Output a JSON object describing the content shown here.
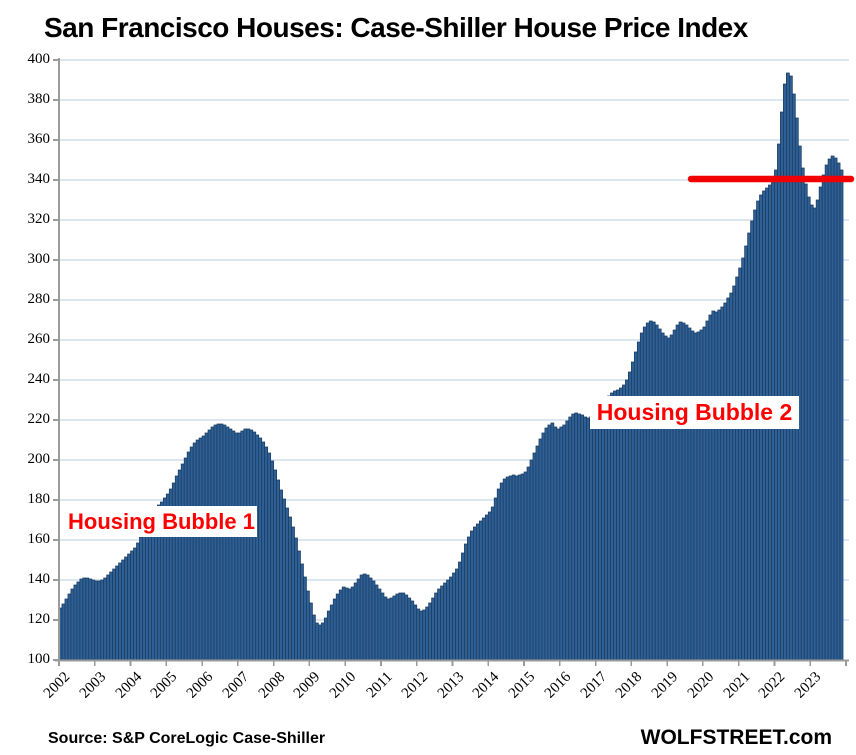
{
  "title": "San Francisco Houses: Case-Shiller House Price Index",
  "source_note": "Source: S&P CoreLogic Case-Shiller",
  "watermark": "WOLFSTREET.com",
  "annotations": {
    "bubble1": "Housing Bubble 1",
    "bubble2": "Housing Bubble 2"
  },
  "colors": {
    "bar_fill": "#2E6096",
    "bar_stroke": "#1B3C61",
    "gridline": "#B9CDE5",
    "axis": "#9B9B9B",
    "reference_line": "#F20000",
    "annotation_text": "#FF0000",
    "background": "#FFFFFF",
    "text": "#000000"
  },
  "chart_data": {
    "type": "bar",
    "title": "San Francisco Houses: Case-Shiller House Price Index",
    "xlabel": "",
    "ylabel": "",
    "frequency": "monthly",
    "x_start": "2002-01",
    "x_end": "2023-11",
    "categories_years": [
      "2002",
      "2003",
      "2004",
      "2005",
      "2006",
      "2007",
      "2008",
      "2009",
      "2010",
      "2011",
      "2012",
      "2013",
      "2014",
      "2015",
      "2016",
      "2017",
      "2018",
      "2019",
      "2020",
      "2021",
      "2022",
      "2023"
    ],
    "ylim": [
      100,
      400
    ],
    "ytick_step": 20,
    "grid": true,
    "legend": "none",
    "series": [
      {
        "name": "Case-Shiller San Francisco House Price Index",
        "values": [
          126,
          128,
          130.5,
          133,
          135.5,
          137.5,
          139,
          140.5,
          141,
          141,
          140.5,
          140,
          139.5,
          139.5,
          140,
          141,
          142.5,
          144,
          145.5,
          147,
          148.5,
          150,
          151.5,
          153,
          154.5,
          156,
          158.5,
          161.5,
          164.5,
          167.5,
          170,
          172.5,
          175,
          177.5,
          179,
          181,
          183,
          185.5,
          188.5,
          192,
          195,
          198,
          201,
          204,
          206.5,
          208.5,
          210,
          211,
          212,
          213.5,
          215,
          216.5,
          217.5,
          218,
          218,
          217.5,
          216.5,
          215.5,
          214.5,
          213.5,
          213.5,
          214.5,
          215.5,
          215.5,
          215,
          214,
          212.5,
          211,
          209,
          206.5,
          203.5,
          199.5,
          195,
          190,
          185,
          180.5,
          176,
          171.5,
          166.5,
          161,
          154.5,
          148,
          141.5,
          134.5,
          128.5,
          122.5,
          118.5,
          117.5,
          118.5,
          121,
          124.5,
          127.5,
          130.5,
          133,
          135,
          136.5,
          136,
          135.5,
          136.5,
          138.5,
          140.5,
          142.5,
          143,
          142.5,
          141,
          139.5,
          137.5,
          135.5,
          133.5,
          131.5,
          130.5,
          131,
          132,
          133,
          133.5,
          133.5,
          132.5,
          131,
          129.5,
          127.5,
          125.5,
          124.5,
          125,
          126.5,
          128.5,
          131,
          133.5,
          135.5,
          137,
          138.5,
          140,
          141.5,
          143.5,
          145.5,
          149,
          153.5,
          158,
          161.5,
          164.5,
          166.5,
          168,
          169.5,
          171,
          172.5,
          174,
          176.5,
          181,
          185.5,
          188.5,
          190.5,
          191.5,
          192,
          192.5,
          192,
          192.5,
          193,
          194,
          196.5,
          200,
          203.5,
          207,
          210.5,
          213.5,
          216,
          217.5,
          218.5,
          216.5,
          215.5,
          216.5,
          217.5,
          219.5,
          221.5,
          223,
          223.5,
          223,
          222.5,
          221.5,
          221,
          221.5,
          222.5,
          223.5,
          225,
          227.5,
          230,
          232,
          233.5,
          234.5,
          235,
          236,
          237.5,
          240,
          244,
          249,
          254,
          259,
          263.5,
          266.5,
          268.5,
          269.5,
          269,
          267.5,
          265.5,
          263.5,
          262,
          261,
          262.5,
          265,
          267.5,
          269,
          268.5,
          267.5,
          266,
          264.5,
          263.5,
          264,
          265,
          266.5,
          269.5,
          272.5,
          274.5,
          274,
          275,
          276.5,
          278.5,
          281,
          283.5,
          287,
          291.5,
          296,
          301,
          307,
          313.5,
          319.5,
          325,
          329.5,
          332.5,
          334.5,
          336,
          337.5,
          339,
          345,
          358,
          374,
          388,
          393.5,
          392,
          383,
          371,
          357,
          346,
          338,
          331.5,
          327.5,
          326,
          330,
          336.5,
          342.5,
          347.5,
          350.5,
          352,
          351,
          348.5,
          345
        ]
      }
    ],
    "reference_line": {
      "value": 340.5,
      "start_month": "2019-09",
      "extends_past_last_bar": true,
      "color": "#F20000"
    }
  }
}
